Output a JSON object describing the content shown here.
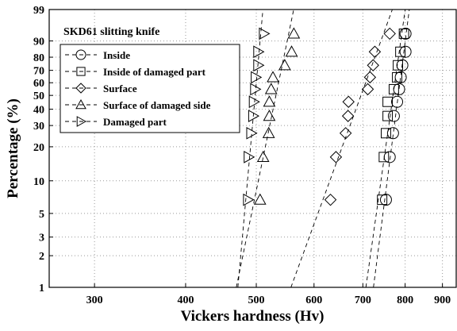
{
  "chart_data": {
    "type": "scatter",
    "title": "SKD61 slitting knife",
    "xlabel": "Vickers hardness (Hv)",
    "ylabel": "Percentage (%)",
    "xscale": "log",
    "yscale": "weibull",
    "xlim": [
      260,
      940
    ],
    "ylim": [
      1,
      99
    ],
    "xticks": [
      300,
      400,
      500,
      600,
      700,
      800,
      900
    ],
    "yticks": [
      1,
      2,
      3,
      5,
      10,
      20,
      30,
      40,
      50,
      60,
      70,
      80,
      90,
      99
    ],
    "grid": true,
    "legend": "upper left",
    "color": "#000000",
    "series": [
      {
        "name": "Inside",
        "marker": "circle",
        "x": [
          753,
          762,
          770,
          772,
          780,
          785,
          789,
          793,
          801,
          801
        ],
        "y": [
          6.7,
          16.3,
          26.0,
          35.6,
          45.2,
          54.8,
          64.4,
          74.0,
          83.7,
          93.3
        ]
      },
      {
        "name": "Inside of damaged part",
        "marker": "square",
        "x": [
          744,
          748,
          753,
          757,
          757,
          772,
          780,
          782,
          788,
          797
        ],
        "y": [
          6.7,
          16.3,
          26.0,
          35.6,
          45.2,
          54.8,
          64.4,
          74.0,
          83.7,
          93.3
        ]
      },
      {
        "name": "Surface",
        "marker": "diamond",
        "x": [
          632,
          643,
          663,
          668,
          669,
          711,
          716,
          723,
          727,
          762
        ],
        "y": [
          6.7,
          16.3,
          26.0,
          35.6,
          45.2,
          54.8,
          64.4,
          74.0,
          83.7,
          93.3
        ]
      },
      {
        "name": "Surface of damaged side",
        "marker": "triangle-up",
        "x": [
          506,
          511,
          520,
          521,
          521,
          524,
          527,
          547,
          559,
          563
        ],
        "y": [
          6.7,
          16.3,
          26.0,
          35.6,
          45.2,
          54.8,
          64.4,
          74.0,
          83.7,
          93.3
        ]
      },
      {
        "name": "Damaged part",
        "marker": "triangle-right",
        "x": [
          487,
          488,
          492,
          495,
          496,
          498,
          499,
          503,
          503,
          512
        ],
        "y": [
          6.7,
          16.3,
          26.0,
          35.6,
          45.2,
          54.8,
          64.4,
          74.0,
          83.7,
          93.3
        ]
      }
    ]
  }
}
